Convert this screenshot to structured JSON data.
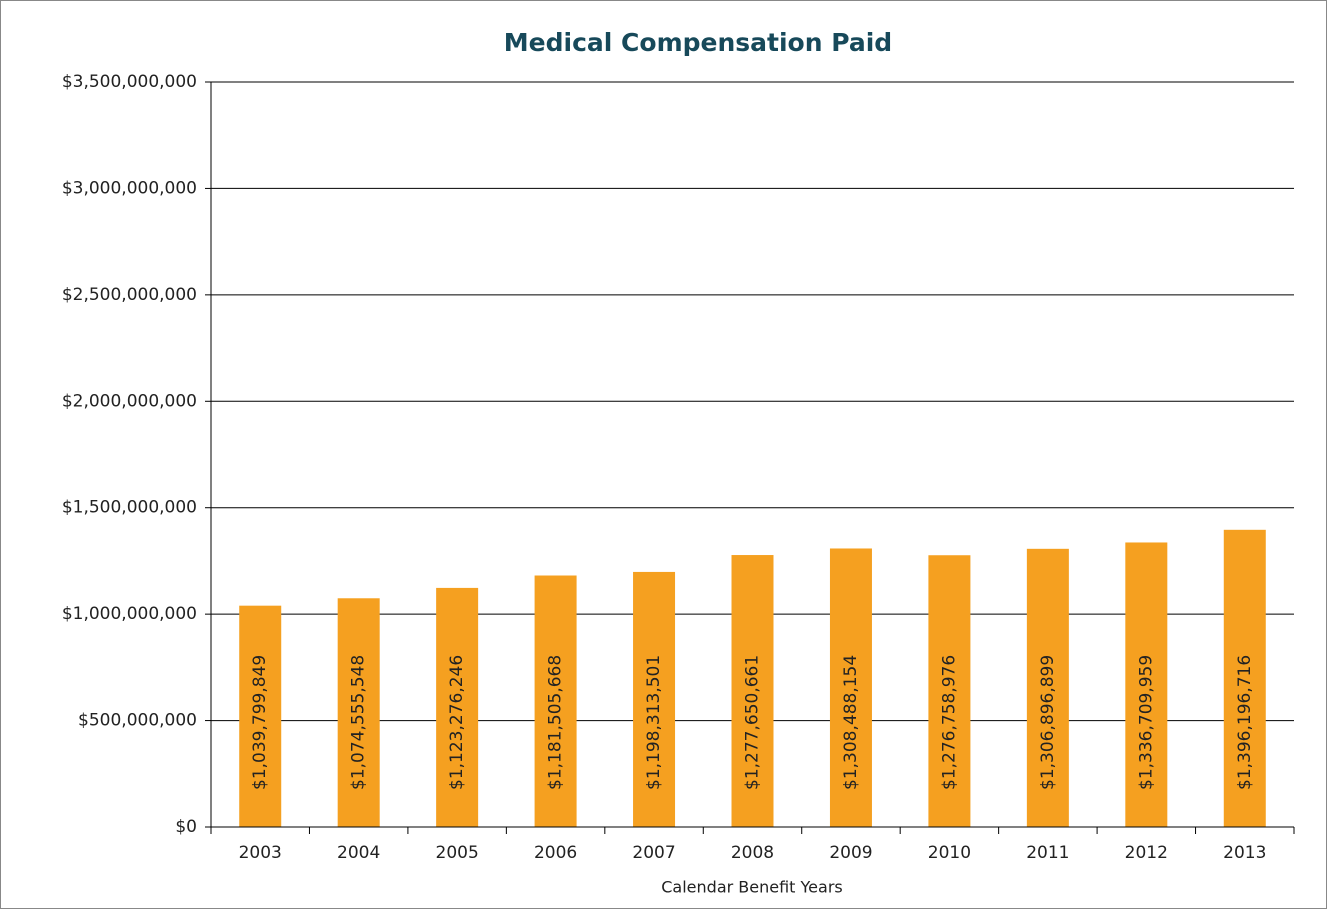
{
  "chart_data": {
    "type": "bar",
    "title": "Medical Compensation Paid",
    "x_label": "Calendar Benefit Years",
    "categories": [
      "2003",
      "2004",
      "2005",
      "2006",
      "2007",
      "2008",
      "2009",
      "2010",
      "2011",
      "2012",
      "2013"
    ],
    "values": [
      1039799849,
      1074555548,
      1123276246,
      1181505668,
      1198313501,
      1277650661,
      1308488154,
      1276758976,
      1306896899,
      1336709959,
      1396196716
    ],
    "value_labels": [
      "$1,039,799,849",
      "$1,074,555,548",
      "$1,123,276,246",
      "$1,181,505,668",
      "$1,198,313,501",
      "$1,277,650,661",
      "$1,308,488,154",
      "$1,276,758,976",
      "$1,306,896,899",
      "$1,336,709,959",
      "$1,396,196,716"
    ],
    "color": "#f5a020",
    "ylim": [
      0,
      3500000000
    ],
    "yticks": [
      {
        "value": 0,
        "label": "$0"
      },
      {
        "value": 500000000,
        "label": "$500,000,000"
      },
      {
        "value": 1000000000,
        "label": "$1,000,000,000"
      },
      {
        "value": 1500000000,
        "label": "$1,500,000,000"
      },
      {
        "value": 2000000000,
        "label": "$2,000,000,000"
      },
      {
        "value": 2500000000,
        "label": "$2,500,000,000"
      },
      {
        "value": 3000000000,
        "label": "$3,000,000,000"
      },
      {
        "value": 3500000000,
        "label": "$3,500,000,000"
      }
    ],
    "grid": true
  }
}
